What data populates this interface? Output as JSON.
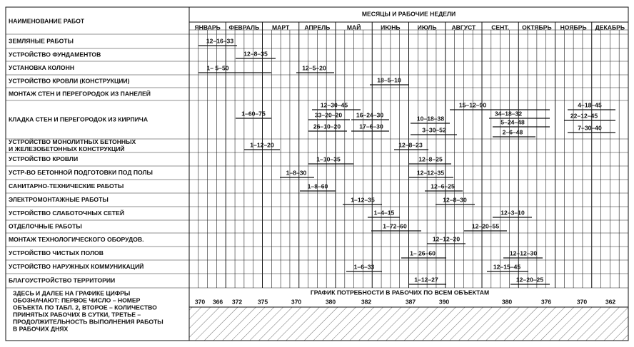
{
  "header": {
    "works_title": "НАИМЕНОВАНИЕ РАБОТ",
    "months_title": "МЕСЯЦЫ И РАБОЧИЕ НЕДЕЛИ",
    "months": [
      "ЯНВАРЬ",
      "ФЕВРАЛЬ",
      "МАРТ",
      "АПРЕЛЬ",
      "МАЙ",
      "ИЮНЬ",
      "ИЮЛЬ",
      "АВГУСТ",
      "СЕНТ.",
      "ОКТЯБРЬ",
      "НОЯБРЬ",
      "ДЕКАБРЬ"
    ]
  },
  "rows": [
    {
      "name": [
        "ЗЕМЛЯНЫЕ РАБОТЫ"
      ],
      "tasks": [
        "12–16–33"
      ]
    },
    {
      "name": [
        "УСТРОЙСТВО ФУНДАМЕНТОВ"
      ],
      "tasks": [
        "12–8–35"
      ]
    },
    {
      "name": [
        "УСТАНОВКА КОЛОНН"
      ],
      "tasks": [
        "1– 5–50",
        "12–5–20"
      ]
    },
    {
      "name": [
        "УСТРОЙСТВО КРОВЛИ (КОНСТРУКЦИИ)"
      ],
      "tasks": [
        "18–5–10"
      ]
    },
    {
      "name": [
        "МОНТАЖ СТЕН И ПЕРЕГОРОДОК ИЗ ПАНЕЛЕЙ"
      ],
      "tasks": []
    },
    {
      "name": [
        "КЛАДКА СТЕН И ПЕРЕГОРОДОК ИЗ КИРПИЧА"
      ],
      "tasks": [
        "1–60–75",
        "12–30–45",
        "33–20–20",
        "16–24–30",
        "26–10–20",
        "17–6–30",
        "10–18–38",
        "3–30–52",
        "15–12–90",
        "34–18–32",
        "5–24–48",
        "2–6–48",
        "4–18–45",
        "22–12–45",
        "7–30–40"
      ]
    },
    {
      "name": [
        "УСТРОЙСТВО МОНОЛИТНЫХ БЕТОННЫХ",
        "И ЖЕЛЕЗОБЕТОННЫХ КОНСТРУКЦИЙ"
      ],
      "tasks": [
        "1–12–20",
        "12–8–23"
      ]
    },
    {
      "name": [
        "УСТРОЙСТВО КРОВЛИ"
      ],
      "tasks": [
        "1–10–35",
        "12–8–25"
      ]
    },
    {
      "name": [
        "УСТР-ВО БЕТОННОЙ ПОДГОТОВКИ ПОД ПОЛЫ"
      ],
      "tasks": [
        "1–8–30",
        "12–12–35"
      ]
    },
    {
      "name": [
        "САНИТАРНО-ТЕХНИЧЕСКИЕ РАБОТЫ"
      ],
      "tasks": [
        "1–8–60",
        "12–6–25"
      ]
    },
    {
      "name": [
        "ЭЛЕКТРОМОНТАЖНЫЕ РАБОТЫ"
      ],
      "tasks": [
        "1–12–35",
        "12–8–30"
      ]
    },
    {
      "name": [
        "УСТРОЙСТВО СЛАБОТОЧНЫХ СЕТЕЙ"
      ],
      "tasks": [
        "1–4–15",
        "12–3–10"
      ]
    },
    {
      "name": [
        "ОТДЕЛОЧНЫЕ РАБОТЫ"
      ],
      "tasks": [
        "1–72–60",
        "12–20–55"
      ]
    },
    {
      "name": [
        "МОНТАЖ ТЕХНОЛОГИЧЕСКОГО ОБОРУДОВ."
      ],
      "tasks": [
        "12–12–20"
      ]
    },
    {
      "name": [
        "УСТРОЙСТВО ЧИСТЫХ ПОЛОВ"
      ],
      "tasks": [
        "1– 26–60",
        "12–12–30"
      ]
    },
    {
      "name": [
        "УСТРОЙСТВО НАРУЖНЫХ КОММУНИКАЦИЙ"
      ],
      "tasks": [
        "1–6–33",
        "12–15–45"
      ]
    },
    {
      "name": [
        "БЛАГОУСТРОЙСТВО ТЕРРИТОРИИ"
      ],
      "tasks": [
        "1–12–27",
        "12–20–25"
      ]
    }
  ],
  "footer": {
    "note": [
      "ЗДЕСЬ И ДАЛЕЕ НА ГРАФИКЕ  ЦИФРЫ",
      "ОБОЗНАЧАЮТ: ПЕРВОЕ ЧИСЛО – НОМЕР",
      "ОБЪЕКТА ПО ТАБЛ. 2, ВТОРОЕ – КОЛИЧЕСТВО",
      "ПРИНЯТЫХ РАБОЧИХ В СУТКИ, ТРЕТЬЕ –",
      "ПРОДОЛЖИТЕЛЬНОСТЬ ВЫПОЛНЕНИЯ РАБОТЫ",
      "В РАБОЧИХ ДНЯХ"
    ],
    "graph_title": "ГРАФИК ПОТРЕБНОСТИ В РАБОЧИХ ПО ВСЕМ ОБЪЕКТАМ",
    "workers": [
      370,
      366,
      372,
      375,
      370,
      380,
      382,
      387,
      390,
      380,
      376,
      370,
      362
    ]
  }
}
